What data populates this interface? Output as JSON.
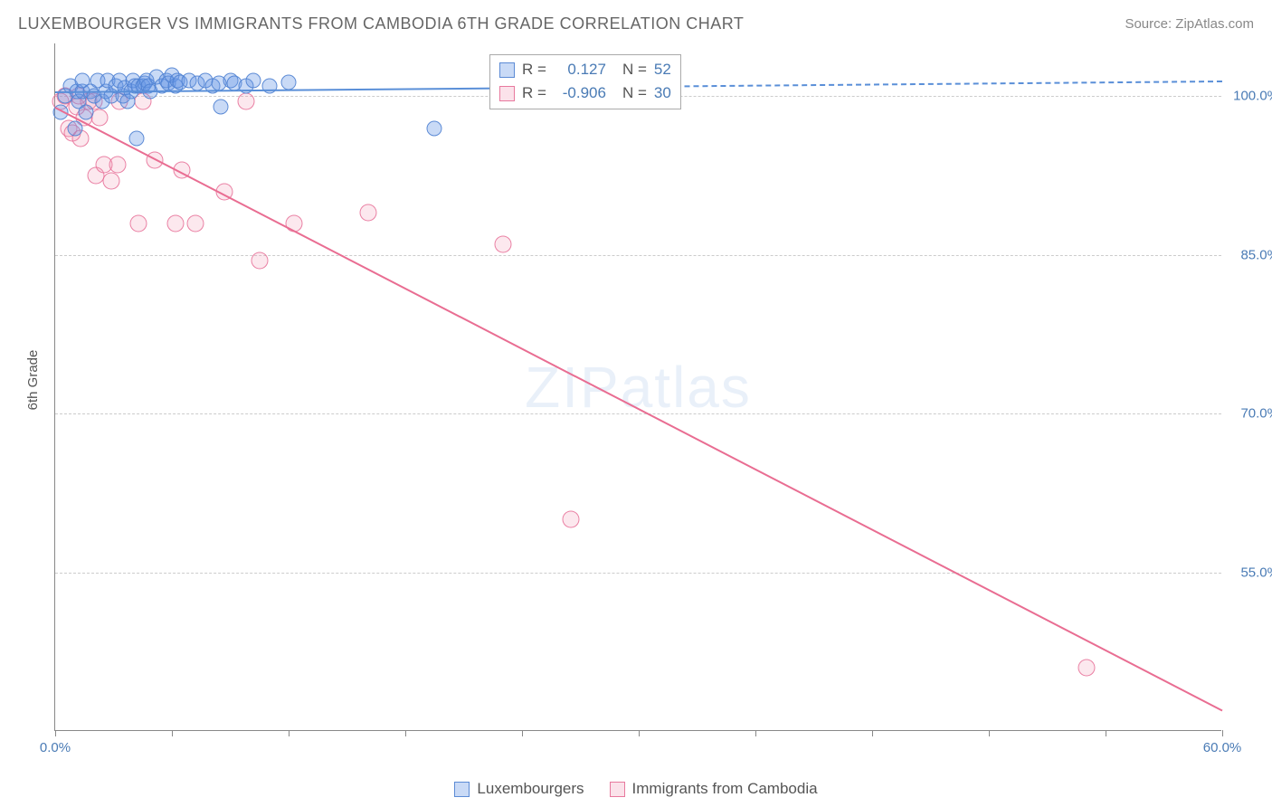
{
  "title": "LUXEMBOURGER VS IMMIGRANTS FROM CAMBODIA 6TH GRADE CORRELATION CHART",
  "source": "Source: ZipAtlas.com",
  "ylabel": "6th Grade",
  "watermark_bold": "ZIP",
  "watermark_thin": "atlas",
  "legend_stats": {
    "rows": [
      {
        "swatch": "blue",
        "r_label": "R =",
        "r_value": "0.127",
        "n_label": "N =",
        "n_value": "52"
      },
      {
        "swatch": "pink",
        "r_label": "R =",
        "r_value": "-0.906",
        "n_label": "N =",
        "n_value": "30"
      }
    ]
  },
  "bottom_legend": [
    {
      "swatch": "blue",
      "label": "Luxembourgers"
    },
    {
      "swatch": "pink",
      "label": "Immigrants from Cambodia"
    }
  ],
  "chart": {
    "type": "scatter-with-regression",
    "xlim": [
      0,
      60
    ],
    "ylim": [
      40,
      105
    ],
    "y_ticks": [
      55,
      70,
      85,
      100
    ],
    "y_tick_labels": [
      "55.0%",
      "70.0%",
      "85.0%",
      "100.0%"
    ],
    "x_ticks": [
      0,
      6,
      12,
      18,
      24,
      30,
      36,
      42,
      48,
      54,
      60
    ],
    "x_labels": [
      {
        "x": 0,
        "label": "0.0%"
      },
      {
        "x": 60,
        "label": "60.0%"
      }
    ],
    "grid_color": "#ccc",
    "axis_color": "#888",
    "tick_label_color": "#4a7bb5",
    "series": {
      "blue": {
        "color_fill": "rgba(100,150,230,0.35)",
        "color_stroke": "rgba(80,130,210,0.9)",
        "marker_size_px": 17,
        "regression": {
          "x1": 0,
          "y1": 100.5,
          "x2": 60,
          "y2": 101.5,
          "solid_until_x": 24,
          "color": "#5a8fd8"
        },
        "points": [
          [
            0.3,
            98.5
          ],
          [
            0.5,
            100
          ],
          [
            0.8,
            101
          ],
          [
            1.0,
            97
          ],
          [
            1.1,
            100.5
          ],
          [
            1.2,
            99.5
          ],
          [
            1.4,
            100.5
          ],
          [
            1.4,
            101.5
          ],
          [
            1.6,
            98.5
          ],
          [
            1.8,
            100.5
          ],
          [
            2.0,
            100
          ],
          [
            2.2,
            101.5
          ],
          [
            2.4,
            99.5
          ],
          [
            2.6,
            100.5
          ],
          [
            2.7,
            101.5
          ],
          [
            2.9,
            100
          ],
          [
            3.1,
            101
          ],
          [
            3.3,
            101.5
          ],
          [
            3.5,
            100
          ],
          [
            3.6,
            100.8
          ],
          [
            3.7,
            99.5
          ],
          [
            3.9,
            100.5
          ],
          [
            4.0,
            101.5
          ],
          [
            4.1,
            101
          ],
          [
            4.2,
            96
          ],
          [
            4.3,
            101
          ],
          [
            4.5,
            101
          ],
          [
            4.6,
            101.2
          ],
          [
            4.7,
            101.5
          ],
          [
            4.8,
            101
          ],
          [
            4.9,
            100.5
          ],
          [
            5.2,
            101.8
          ],
          [
            5.5,
            101
          ],
          [
            5.7,
            101.5
          ],
          [
            5.8,
            101.2
          ],
          [
            6.0,
            102
          ],
          [
            6.2,
            101
          ],
          [
            6.3,
            101.5
          ],
          [
            6.4,
            101.3
          ],
          [
            6.9,
            101.5
          ],
          [
            7.3,
            101.2
          ],
          [
            7.7,
            101.5
          ],
          [
            8.1,
            101
          ],
          [
            8.4,
            101.2
          ],
          [
            8.5,
            99
          ],
          [
            9.0,
            101.5
          ],
          [
            9.2,
            101.2
          ],
          [
            9.8,
            101
          ],
          [
            10.2,
            101.5
          ],
          [
            11.0,
            101
          ],
          [
            12.0,
            101.3
          ],
          [
            19.5,
            97
          ]
        ]
      },
      "pink": {
        "color_fill": "rgba(240,140,170,0.2)",
        "color_stroke": "rgba(230,110,150,0.85)",
        "marker_size_px": 19,
        "regression": {
          "x1": 0,
          "y1": 99,
          "x2": 60,
          "y2": 42,
          "color": "#e96d92"
        },
        "points": [
          [
            0.3,
            99.5
          ],
          [
            0.5,
            100
          ],
          [
            0.7,
            97
          ],
          [
            0.9,
            96.5
          ],
          [
            1.1,
            99
          ],
          [
            1.2,
            100
          ],
          [
            1.3,
            96
          ],
          [
            1.5,
            98
          ],
          [
            1.7,
            99.5
          ],
          [
            2.0,
            99.5
          ],
          [
            2.1,
            92.5
          ],
          [
            2.3,
            98
          ],
          [
            2.5,
            93.5
          ],
          [
            2.9,
            92
          ],
          [
            3.2,
            93.5
          ],
          [
            3.3,
            99.5
          ],
          [
            4.3,
            88
          ],
          [
            4.5,
            99.5
          ],
          [
            5.1,
            94
          ],
          [
            6.2,
            88
          ],
          [
            6.5,
            93
          ],
          [
            7.2,
            88
          ],
          [
            8.7,
            91
          ],
          [
            9.8,
            99.5
          ],
          [
            10.5,
            84.5
          ],
          [
            12.3,
            88
          ],
          [
            16.1,
            89
          ],
          [
            23.0,
            86
          ],
          [
            26.5,
            60
          ],
          [
            53.0,
            46
          ]
        ]
      }
    }
  }
}
